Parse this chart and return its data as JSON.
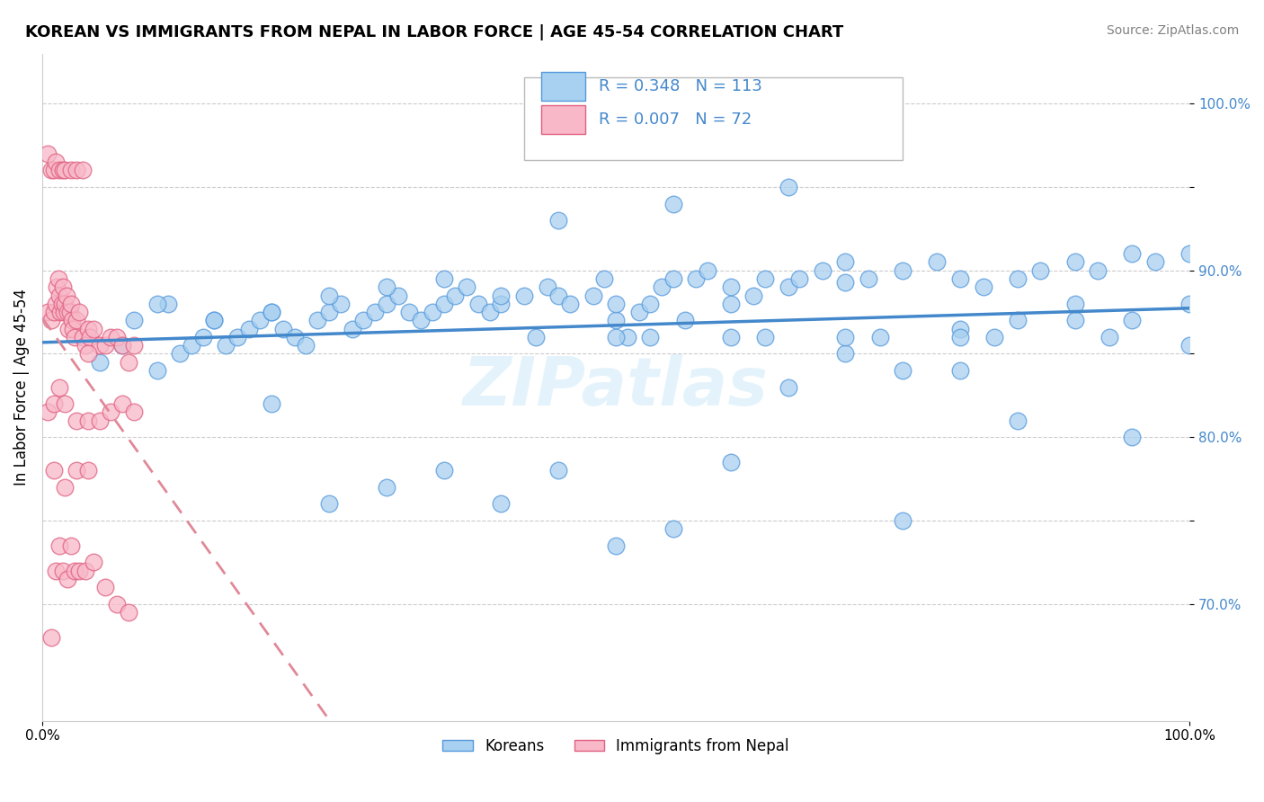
{
  "title": "KOREAN VS IMMIGRANTS FROM NEPAL IN LABOR FORCE | AGE 45-54 CORRELATION CHART",
  "source": "Source: ZipAtlas.com",
  "ylabel": "In Labor Force | Age 45-54",
  "x_range": [
    0.0,
    1.0
  ],
  "y_range": [
    0.63,
    1.03
  ],
  "legend_r_blue": "0.348",
  "legend_n_blue": "113",
  "legend_r_pink": "0.007",
  "legend_n_pink": "72",
  "legend_label_blue": "Koreans",
  "legend_label_pink": "Immigrants from Nepal",
  "blue_face": "#A8D0F0",
  "blue_edge": "#5599DD",
  "pink_face": "#F8B8C8",
  "pink_edge": "#E06080",
  "trend_blue": "#4488CC",
  "trend_pink": "#E08898",
  "blue_scatter_x": [
    0.05,
    0.07,
    0.1,
    0.12,
    0.13,
    0.14,
    0.15,
    0.16,
    0.17,
    0.18,
    0.19,
    0.2,
    0.21,
    0.22,
    0.23,
    0.24,
    0.25,
    0.26,
    0.27,
    0.28,
    0.29,
    0.3,
    0.31,
    0.32,
    0.33,
    0.34,
    0.35,
    0.36,
    0.37,
    0.38,
    0.39,
    0.4,
    0.42,
    0.44,
    0.45,
    0.46,
    0.48,
    0.49,
    0.5,
    0.51,
    0.52,
    0.53,
    0.54,
    0.55,
    0.56,
    0.57,
    0.58,
    0.6,
    0.62,
    0.63,
    0.65,
    0.66,
    0.68,
    0.7,
    0.72,
    0.75,
    0.78,
    0.8,
    0.82,
    0.85,
    0.87,
    0.9,
    0.92,
    0.95,
    0.97,
    1.0,
    0.08,
    0.11,
    0.2,
    0.25,
    0.3,
    0.35,
    0.4,
    0.45,
    0.5,
    0.55,
    0.6,
    0.65,
    0.7,
    0.75,
    0.8,
    0.85,
    0.9,
    0.95,
    1.0,
    0.1,
    0.2,
    0.3,
    0.4,
    0.5,
    0.6,
    0.7,
    0.8,
    0.9,
    1.0,
    0.15,
    0.25,
    0.35,
    0.45,
    0.55,
    0.65,
    0.75,
    0.85,
    0.95,
    0.5,
    0.6,
    0.7,
    0.8,
    0.43,
    0.53,
    0.63,
    0.73,
    0.83,
    0.93
  ],
  "blue_scatter_y": [
    0.845,
    0.855,
    0.84,
    0.85,
    0.855,
    0.86,
    0.87,
    0.855,
    0.86,
    0.865,
    0.87,
    0.875,
    0.865,
    0.86,
    0.855,
    0.87,
    0.875,
    0.88,
    0.865,
    0.87,
    0.875,
    0.88,
    0.885,
    0.875,
    0.87,
    0.875,
    0.88,
    0.885,
    0.89,
    0.88,
    0.875,
    0.88,
    0.885,
    0.89,
    0.885,
    0.88,
    0.885,
    0.895,
    0.87,
    0.86,
    0.875,
    0.88,
    0.89,
    0.895,
    0.87,
    0.895,
    0.9,
    0.88,
    0.885,
    0.895,
    0.89,
    0.895,
    0.9,
    0.905,
    0.895,
    0.9,
    0.905,
    0.895,
    0.89,
    0.895,
    0.9,
    0.905,
    0.9,
    0.91,
    0.905,
    0.91,
    0.87,
    0.88,
    0.82,
    0.76,
    0.77,
    0.78,
    0.76,
    0.78,
    0.735,
    0.745,
    0.785,
    0.83,
    0.85,
    0.84,
    0.84,
    0.87,
    0.87,
    0.87,
    0.88,
    0.88,
    0.875,
    0.89,
    0.885,
    0.88,
    0.89,
    0.893,
    0.865,
    0.88,
    0.855,
    0.87,
    0.885,
    0.895,
    0.93,
    0.94,
    0.95,
    0.75,
    0.81,
    0.8,
    0.86,
    0.86,
    0.86,
    0.86,
    0.86,
    0.86,
    0.86,
    0.86,
    0.86,
    0.86
  ],
  "pink_scatter_x": [
    0.005,
    0.008,
    0.01,
    0.012,
    0.013,
    0.014,
    0.015,
    0.016,
    0.017,
    0.018,
    0.019,
    0.02,
    0.021,
    0.022,
    0.023,
    0.024,
    0.025,
    0.026,
    0.027,
    0.028,
    0.03,
    0.032,
    0.035,
    0.038,
    0.04,
    0.042,
    0.045,
    0.05,
    0.055,
    0.06,
    0.065,
    0.07,
    0.075,
    0.08,
    0.005,
    0.008,
    0.01,
    0.012,
    0.015,
    0.018,
    0.02,
    0.025,
    0.03,
    0.035,
    0.04,
    0.005,
    0.01,
    0.015,
    0.02,
    0.03,
    0.04,
    0.05,
    0.06,
    0.07,
    0.08,
    0.01,
    0.02,
    0.03,
    0.04,
    0.015,
    0.025,
    0.012,
    0.018,
    0.022,
    0.028,
    0.032,
    0.038,
    0.045,
    0.055,
    0.065,
    0.075,
    0.008
  ],
  "pink_scatter_y": [
    0.875,
    0.87,
    0.875,
    0.88,
    0.89,
    0.895,
    0.885,
    0.875,
    0.88,
    0.89,
    0.875,
    0.88,
    0.885,
    0.875,
    0.865,
    0.875,
    0.88,
    0.87,
    0.865,
    0.86,
    0.87,
    0.875,
    0.86,
    0.855,
    0.865,
    0.86,
    0.865,
    0.855,
    0.855,
    0.86,
    0.86,
    0.855,
    0.845,
    0.855,
    0.97,
    0.96,
    0.96,
    0.965,
    0.96,
    0.96,
    0.96,
    0.96,
    0.96,
    0.96,
    0.85,
    0.815,
    0.82,
    0.83,
    0.82,
    0.81,
    0.81,
    0.81,
    0.815,
    0.82,
    0.815,
    0.78,
    0.77,
    0.78,
    0.78,
    0.735,
    0.735,
    0.72,
    0.72,
    0.715,
    0.72,
    0.72,
    0.72,
    0.725,
    0.71,
    0.7,
    0.695,
    0.68
  ]
}
